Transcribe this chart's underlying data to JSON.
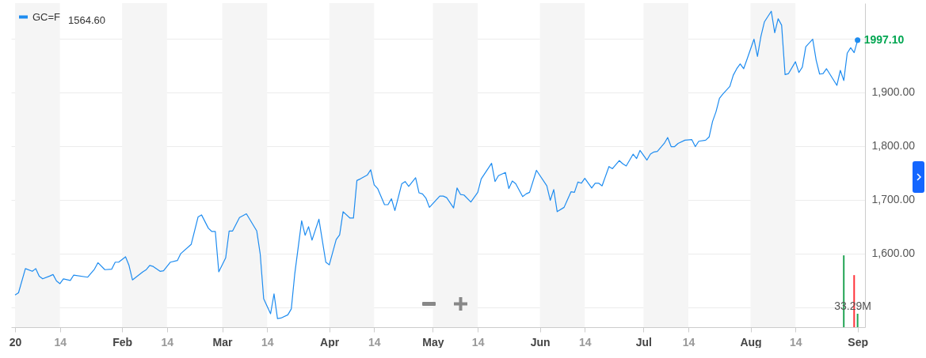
{
  "chart_data": {
    "type": "line",
    "xlim": [
      "2020-01-01",
      "2020-09-02"
    ],
    "ylim": [
      1463,
      2066
    ],
    "xticks": [
      {
        "value": "2020-01-01",
        "label": "20"
      },
      {
        "value": "2020-01-14",
        "label": "14"
      },
      {
        "value": "2020-02-01",
        "label": "Feb"
      },
      {
        "value": "2020-02-14",
        "label": "14"
      },
      {
        "value": "2020-03-01",
        "label": "Mar"
      },
      {
        "value": "2020-03-14",
        "label": "14"
      },
      {
        "value": "2020-04-01",
        "label": "Apr"
      },
      {
        "value": "2020-04-14",
        "label": "14"
      },
      {
        "value": "2020-05-01",
        "label": "May"
      },
      {
        "value": "2020-05-14",
        "label": "14"
      },
      {
        "value": "2020-06-01",
        "label": "Jun"
      },
      {
        "value": "2020-06-14",
        "label": "14"
      },
      {
        "value": "2020-07-01",
        "label": "Jul"
      },
      {
        "value": "2020-07-14",
        "label": "14"
      },
      {
        "value": "2020-08-01",
        "label": "Aug"
      },
      {
        "value": "2020-08-14",
        "label": "14"
      },
      {
        "value": "2020-09-01",
        "label": "Sep"
      }
    ],
    "yticks": [
      {
        "value": 1500,
        "label": null
      },
      {
        "value": 1600,
        "label": "1,600.00"
      },
      {
        "value": 1700,
        "label": "1,700.00"
      },
      {
        "value": 1800,
        "label": "1,800.00"
      },
      {
        "value": 1900,
        "label": "1,900.00"
      },
      {
        "value": 2000,
        "label": null
      }
    ],
    "y2lim": [
      0,
      803
    ],
    "grid": "y",
    "legend": "top left",
    "annotations": [
      "1564.60"
    ],
    "bands": [
      {
        "axis": "x",
        "from": "2020-01-01",
        "to": "2020-01-14",
        "color": "#f5f5f5"
      },
      {
        "axis": "x",
        "from": "2020-02-01",
        "to": "2020-02-14",
        "color": "#f5f5f5"
      },
      {
        "axis": "x",
        "from": "2020-03-01",
        "to": "2020-03-14",
        "color": "#f5f5f5"
      },
      {
        "axis": "x",
        "from": "2020-04-01",
        "to": "2020-04-14",
        "color": "#f5f5f5"
      },
      {
        "axis": "x",
        "from": "2020-05-01",
        "to": "2020-05-14",
        "color": "#f5f5f5"
      },
      {
        "axis": "x",
        "from": "2020-06-01",
        "to": "2020-06-14",
        "color": "#f5f5f5"
      },
      {
        "axis": "x",
        "from": "2020-07-01",
        "to": "2020-07-14",
        "color": "#f5f5f5"
      },
      {
        "axis": "x",
        "from": "2020-08-01",
        "to": "2020-08-14",
        "color": "#f5f5f5"
      }
    ],
    "series": [
      {
        "name": "GC=F",
        "color": "#1e8cf0",
        "x": [
          "2020-01-01",
          "2020-01-02",
          "2020-01-04",
          "2020-01-06",
          "2020-01-07",
          "2020-01-08",
          "2020-01-09",
          "2020-01-11",
          "2020-01-12",
          "2020-01-13",
          "2020-01-14",
          "2020-01-15",
          "2020-01-17",
          "2020-01-18",
          "2020-01-22",
          "2020-01-24",
          "2020-01-25",
          "2020-01-27",
          "2020-01-29",
          "2020-01-30",
          "2020-01-31",
          "2020-02-02",
          "2020-02-03",
          "2020-02-04",
          "2020-02-07",
          "2020-02-08",
          "2020-02-09",
          "2020-02-10",
          "2020-02-12",
          "2020-02-13",
          "2020-02-15",
          "2020-02-17",
          "2020-02-18",
          "2020-02-21",
          "2020-02-23",
          "2020-02-24",
          "2020-02-26",
          "2020-02-27",
          "2020-02-28",
          "2020-02-29",
          "2020-03-02",
          "2020-03-03",
          "2020-03-04",
          "2020-03-06",
          "2020-03-08",
          "2020-03-11",
          "2020-03-12",
          "2020-03-13",
          "2020-03-15",
          "2020-03-16",
          "2020-03-17",
          "2020-03-18",
          "2020-03-20",
          "2020-03-21",
          "2020-03-22",
          "2020-03-24",
          "2020-03-25",
          "2020-03-26",
          "2020-03-27",
          "2020-03-29",
          "2020-03-31",
          "2020-04-01",
          "2020-04-03",
          "2020-04-04",
          "2020-04-05",
          "2020-04-07",
          "2020-04-08",
          "2020-04-09",
          "2020-04-10",
          "2020-04-12",
          "2020-04-13",
          "2020-04-14",
          "2020-04-15",
          "2020-04-17",
          "2020-04-18",
          "2020-04-19",
          "2020-04-20",
          "2020-04-22",
          "2020-04-23",
          "2020-04-24",
          "2020-04-26",
          "2020-04-27",
          "2020-04-28",
          "2020-04-29",
          "2020-04-30",
          "2020-05-03",
          "2020-05-04",
          "2020-05-05",
          "2020-05-07",
          "2020-05-08",
          "2020-05-09",
          "2020-05-10",
          "2020-05-12",
          "2020-05-14",
          "2020-05-15",
          "2020-05-18",
          "2020-05-19",
          "2020-05-20",
          "2020-05-22",
          "2020-05-23",
          "2020-05-24",
          "2020-05-25",
          "2020-05-27",
          "2020-05-28",
          "2020-05-29",
          "2020-05-31",
          "2020-06-03",
          "2020-06-04",
          "2020-06-05",
          "2020-06-06",
          "2020-06-08",
          "2020-06-10",
          "2020-06-11",
          "2020-06-12",
          "2020-06-13",
          "2020-06-14",
          "2020-06-16",
          "2020-06-17",
          "2020-06-18",
          "2020-06-19",
          "2020-06-21",
          "2020-06-22",
          "2020-06-24",
          "2020-06-25",
          "2020-06-26",
          "2020-06-28",
          "2020-06-29",
          "2020-06-30",
          "2020-07-02",
          "2020-07-03",
          "2020-07-04",
          "2020-07-05",
          "2020-07-07",
          "2020-07-08",
          "2020-07-09",
          "2020-07-10",
          "2020-07-11",
          "2020-07-13",
          "2020-07-15",
          "2020-07-16",
          "2020-07-17",
          "2020-07-19",
          "2020-07-20",
          "2020-07-21",
          "2020-07-22",
          "2020-07-23",
          "2020-07-24",
          "2020-07-26",
          "2020-07-27",
          "2020-07-28",
          "2020-07-29",
          "2020-07-30",
          "2020-07-31",
          "2020-08-02",
          "2020-08-03",
          "2020-08-04",
          "2020-08-05",
          "2020-08-07",
          "2020-08-08",
          "2020-08-09",
          "2020-08-10",
          "2020-08-11",
          "2020-08-12",
          "2020-08-14",
          "2020-08-15",
          "2020-08-16",
          "2020-08-17",
          "2020-08-19",
          "2020-08-20",
          "2020-08-21",
          "2020-08-22",
          "2020-08-23",
          "2020-08-26",
          "2020-08-27",
          "2020-08-28",
          "2020-08-29",
          "2020-08-30",
          "2020-08-31",
          "2020-09-01"
        ],
        "values": [
          1523,
          1527,
          1572,
          1567,
          1572,
          1558,
          1553,
          1558,
          1561,
          1549,
          1544,
          1553,
          1550,
          1560,
          1556,
          1571,
          1583,
          1570,
          1571,
          1584,
          1584,
          1594,
          1578,
          1551,
          1566,
          1570,
          1578,
          1576,
          1567,
          1568,
          1584,
          1587,
          1600,
          1617,
          1668,
          1672,
          1647,
          1641,
          1641,
          1566,
          1592,
          1642,
          1642,
          1667,
          1674,
          1642,
          1599,
          1516,
          1488,
          1525,
          1479,
          1480,
          1486,
          1497,
          1562,
          1661,
          1634,
          1650,
          1625,
          1664,
          1584,
          1579,
          1626,
          1635,
          1678,
          1666,
          1666,
          1736,
          1739,
          1746,
          1756,
          1728,
          1721,
          1691,
          1691,
          1702,
          1680,
          1730,
          1734,
          1725,
          1741,
          1713,
          1711,
          1703,
          1686,
          1707,
          1707,
          1704,
          1685,
          1722,
          1710,
          1709,
          1696,
          1714,
          1739,
          1768,
          1734,
          1745,
          1751,
          1721,
          1735,
          1730,
          1706,
          1711,
          1714,
          1755,
          1726,
          1699,
          1719,
          1678,
          1686,
          1715,
          1714,
          1733,
          1731,
          1740,
          1722,
          1731,
          1731,
          1726,
          1762,
          1758,
          1773,
          1767,
          1763,
          1785,
          1777,
          1792,
          1774,
          1785,
          1789,
          1790,
          1805,
          1816,
          1799,
          1799,
          1805,
          1811,
          1812,
          1799,
          1809,
          1811,
          1817,
          1846,
          1864,
          1889,
          1897,
          1911,
          1932,
          1944,
          1953,
          1944,
          1962,
          1999,
          1967,
          2004,
          2031,
          2051,
          2011,
          2037,
          2025,
          1933,
          1935,
          1957,
          1937,
          1947,
          1985,
          1999,
          1960,
          1934,
          1935,
          1944,
          1913,
          1941,
          1922,
          1973,
          1983,
          1974,
          1997.1
        ],
        "value_labels": [
          null,
          null,
          null,
          null,
          null,
          null,
          null,
          null,
          null,
          null,
          null,
          null,
          null,
          null,
          null,
          null,
          null,
          null,
          null,
          null,
          null,
          null,
          null,
          null,
          null,
          null,
          null,
          null,
          null,
          null,
          null,
          null,
          null,
          null,
          null,
          null,
          null,
          null,
          null,
          null,
          null,
          null,
          null,
          null,
          null,
          null,
          null,
          null,
          null,
          null,
          null,
          null,
          null,
          null,
          null,
          null,
          null,
          null,
          null,
          null,
          null,
          null,
          null,
          null,
          null,
          null,
          null,
          null,
          null,
          null,
          null,
          null,
          null,
          null,
          null,
          null,
          null,
          null,
          null,
          null,
          null,
          null,
          null,
          null,
          null,
          null,
          null,
          null,
          null,
          null,
          null,
          null,
          null,
          null,
          null,
          null,
          null,
          null,
          null,
          null,
          null,
          null,
          null,
          null,
          null,
          null,
          null,
          null,
          null,
          null,
          null,
          null,
          null,
          null,
          null,
          null,
          null,
          null,
          null,
          null,
          null,
          null,
          null,
          null,
          null,
          null,
          null,
          null,
          null,
          null,
          null,
          null,
          null,
          null,
          null,
          null,
          null,
          null,
          null,
          null,
          null,
          null,
          null,
          null,
          null,
          null,
          null,
          null,
          null,
          null,
          null,
          null,
          null,
          null,
          null,
          null,
          null,
          null,
          null,
          null,
          null,
          null,
          null,
          null,
          null,
          null,
          null,
          null,
          null,
          null,
          null,
          null,
          null,
          null,
          null,
          null,
          null,
          null,
          "1997.10"
        ]
      },
      {
        "type": "bar",
        "axis": "y2",
        "x": [
          "2020-08-28",
          "2020-08-31",
          "2020-09-01"
        ],
        "values": [
          178,
          129,
          33.29
        ],
        "colors": [
          "#21a353",
          "#ff333a",
          "#21a353"
        ],
        "value_labels": [
          null,
          null,
          "33.29M"
        ]
      }
    ]
  }
}
